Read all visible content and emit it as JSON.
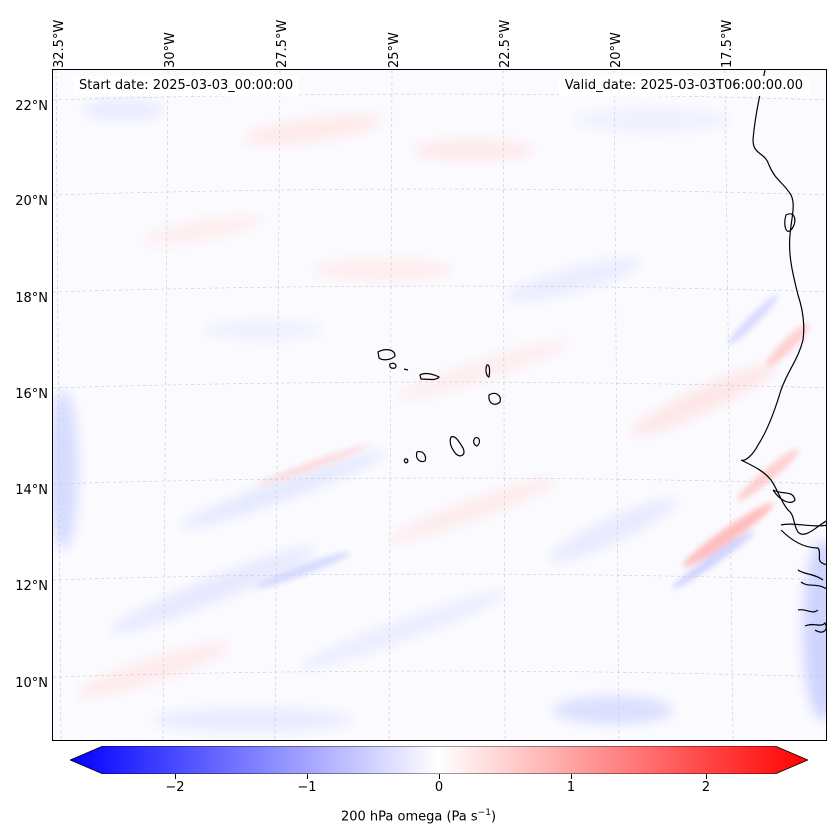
{
  "map": {
    "start_label": "Start date: 2025-03-03_00:00:00",
    "valid_label": "Valid_date: 2025-03-03T06:00:00.00",
    "lon_ticks": [
      "32.5°W",
      "30°W",
      "27.5°W",
      "25°W",
      "22.5°W",
      "20°W",
      "17.5°W"
    ],
    "lat_ticks": [
      "22°N",
      "20°N",
      "18°N",
      "16°N",
      "14°N",
      "12°N",
      "10°N"
    ],
    "field": "200 hPa omega",
    "colormap": "bwr"
  },
  "colorbar": {
    "label_main": "200 hPa omega (Pa s",
    "label_sup": "−1",
    "label_end": ")",
    "ticks": [
      "−2",
      "−1",
      "0",
      "1",
      "2"
    ],
    "range": [
      -2.6,
      2.6
    ],
    "min_color": "#0000ff",
    "mid_color": "#ffffff",
    "max_color": "#ff0000"
  },
  "icons": {
    "coastline": "coastline-icon"
  }
}
